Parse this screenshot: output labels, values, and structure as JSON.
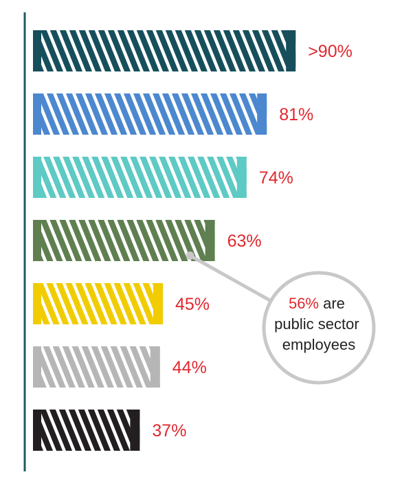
{
  "chart_data": {
    "type": "bar",
    "orientation": "horizontal",
    "bars": [
      {
        "label": ">90%",
        "value": 91,
        "color": "#164f5b"
      },
      {
        "label": "81%",
        "value": 81,
        "color": "#4c88cf"
      },
      {
        "label": "74%",
        "value": 74,
        "color": "#5ecac4"
      },
      {
        "label": "63%",
        "value": 63,
        "color": "#5f7f50"
      },
      {
        "label": "45%",
        "value": 45,
        "color": "#f0cc00"
      },
      {
        "label": "44%",
        "value": 44,
        "color": "#b6b6b6"
      },
      {
        "label": "37%",
        "value": 37,
        "color": "#231f20"
      }
    ],
    "axis_color": "#1f5a5f",
    "label_color": "#e0282e",
    "bar_pattern": "white diagonal stripes",
    "callout": {
      "attached_to": "63%",
      "highlight": "56%",
      "text_line1": "are",
      "text_line2": "public sector",
      "text_line3": "employees",
      "circle_color": "#c8c8c8"
    }
  }
}
